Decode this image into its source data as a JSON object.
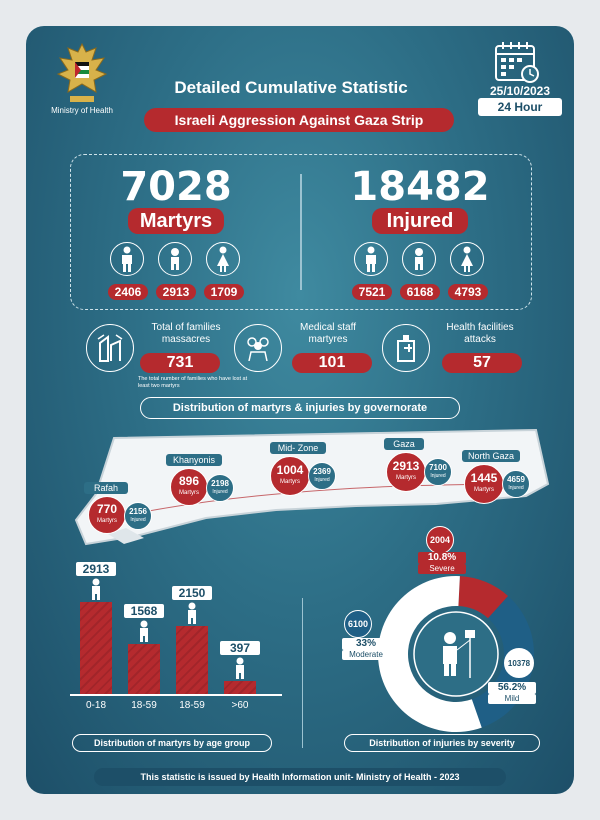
{
  "header": {
    "ministry": "Ministry of Health",
    "title": "Detailed Cumulative Statistic",
    "subtitle": "Israeli Aggression Against Gaza Strip",
    "date": "25/10/2023",
    "period": "24 Hour"
  },
  "martyrs": {
    "total": "7028",
    "label": "Martyrs",
    "men": "2406",
    "children": "2913",
    "women": "1709"
  },
  "injured": {
    "total": "18482",
    "label": "Injured",
    "men": "7521",
    "children": "6168",
    "women": "4793"
  },
  "families": {
    "label": "Total of families massacres",
    "value": "731",
    "note": "The total number of families who have lost at least two martyrs"
  },
  "medical": {
    "label": "Medical staff martyres",
    "value": "101"
  },
  "facilities": {
    "label": "Health facilities attacks",
    "value": "57"
  },
  "governorate": {
    "title": "Distribution of martyrs & injuries by governorate",
    "martyrs_label": "Martyrs",
    "injured_label": "Injured",
    "items": [
      {
        "name": "Rafah",
        "martyrs": "770",
        "injured": "2156"
      },
      {
        "name": "Khanyonis",
        "martyrs": "896",
        "injured": "2198"
      },
      {
        "name": "Mid- Zone",
        "martyrs": "1004",
        "injured": "2369"
      },
      {
        "name": "Gaza",
        "martyrs": "2913",
        "injured": "7100"
      },
      {
        "name": "North Gaza",
        "martyrs": "1445",
        "injured": "4659"
      }
    ]
  },
  "chart_data": [
    {
      "type": "bar",
      "title": "Distribution of martyrs by age group",
      "categories": [
        "0-18",
        "18-59",
        "18-59",
        ">60"
      ],
      "values": [
        2913,
        1568,
        2150,
        397
      ]
    },
    {
      "type": "pie",
      "title": "Distribution of injuries by severity",
      "slices": [
        {
          "label": "Severe",
          "value": 2004,
          "percent": "10.8%"
        },
        {
          "label": "Moderate",
          "value": 6100,
          "percent": "33%"
        },
        {
          "label": "Mild",
          "value": 10378,
          "percent": "56.2%"
        }
      ],
      "colors": {
        "Severe": "#b52a2e",
        "Moderate": "#1f5f86",
        "Mild": "#ffffff"
      }
    }
  ],
  "footer": "This statistic is issued by Health Information unit- Ministry of Health - 2023",
  "colors": {
    "accent": "#b52a2e",
    "background": "#2d6e86"
  }
}
